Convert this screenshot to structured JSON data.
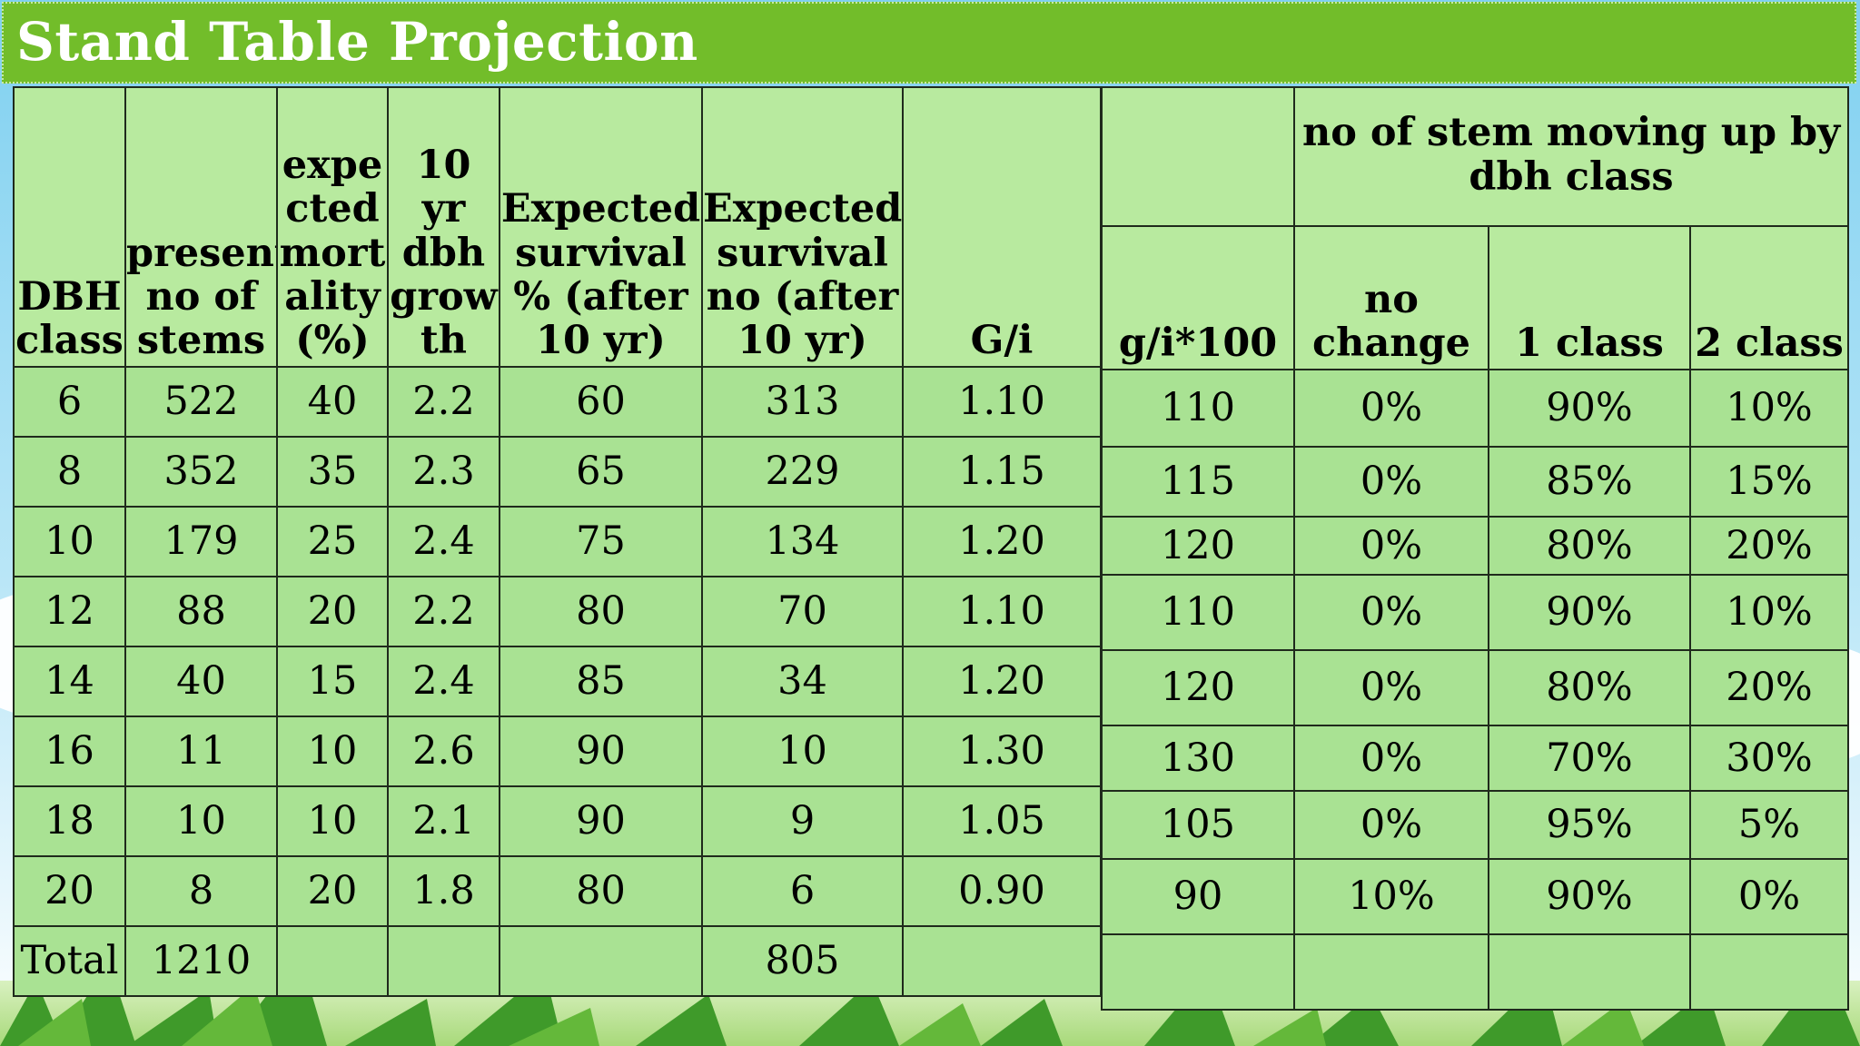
{
  "title": "Stand Table Projection",
  "colors": {
    "title_bar": "#72bd2a",
    "table_fill": "#a9e293",
    "header_fill": "#b8ea9f"
  },
  "left_table": {
    "headers": [
      "DBH class",
      "present no of stems",
      "expe cted mort ality (%)",
      "10 yr dbh grow th",
      "Expected survival % (after 10 yr)",
      "Expected survival no (after 10 yr)",
      "G/i"
    ],
    "rows": [
      [
        "6",
        "522",
        "40",
        "2.2",
        "60",
        "313",
        "1.10"
      ],
      [
        "8",
        "352",
        "35",
        "2.3",
        "65",
        "229",
        "1.15"
      ],
      [
        "10",
        "179",
        "25",
        "2.4",
        "75",
        "134",
        "1.20"
      ],
      [
        "12",
        "88",
        "20",
        "2.2",
        "80",
        "70",
        "1.10"
      ],
      [
        "14",
        "40",
        "15",
        "2.4",
        "85",
        "34",
        "1.20"
      ],
      [
        "16",
        "11",
        "10",
        "2.6",
        "90",
        "10",
        "1.30"
      ],
      [
        "18",
        "10",
        "10",
        "2.1",
        "90",
        "9",
        "1.05"
      ],
      [
        "20",
        "8",
        "20",
        "1.8",
        "80",
        "6",
        "0.90"
      ]
    ],
    "total": [
      "Total",
      "1210",
      "",
      "",
      "",
      "805",
      ""
    ]
  },
  "right_table": {
    "group_header": "no of stem moving up by dbh class",
    "headers": [
      "g/i*100",
      "no change",
      "1 class",
      "2 class"
    ],
    "rows": [
      [
        "110",
        "0%",
        "90%",
        "10%"
      ],
      [
        "115",
        "0%",
        "85%",
        "15%"
      ],
      [
        "120",
        "0%",
        "80%",
        "20%"
      ],
      [
        "110",
        "0%",
        "90%",
        "10%"
      ],
      [
        "120",
        "0%",
        "80%",
        "20%"
      ],
      [
        "130",
        "0%",
        "70%",
        "30%"
      ],
      [
        "105",
        "0%",
        "95%",
        "5%"
      ],
      [
        "90",
        "10%",
        "90%",
        "0%"
      ]
    ],
    "blank_row": [
      "",
      "",
      "",
      ""
    ]
  }
}
